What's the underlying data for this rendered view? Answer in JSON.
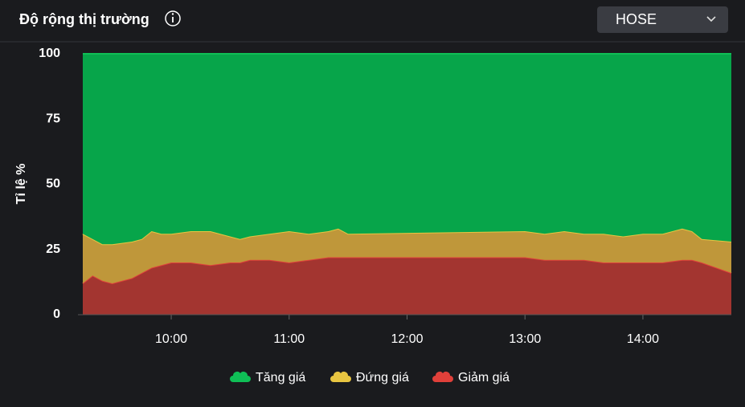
{
  "header": {
    "dropdown": "HOSE"
  },
  "chart_data": {
    "type": "stacked_area",
    "title": "Độ rộng thị trường",
    "ylabel": "Tỉ lệ %",
    "x": [
      "09:15",
      "09:20",
      "09:25",
      "09:30",
      "09:40",
      "09:45",
      "09:50",
      "09:55",
      "10:00",
      "10:10",
      "10:20",
      "10:30",
      "10:35",
      "10:40",
      "10:50",
      "11:00",
      "11:10",
      "11:20",
      "11:25",
      "11:30",
      "13:00",
      "13:10",
      "13:20",
      "13:30",
      "13:40",
      "13:50",
      "14:00",
      "14:10",
      "14:20",
      "14:25",
      "14:30",
      "14:45"
    ],
    "series": [
      {
        "name": "Tăng giá",
        "color": "#07a54a",
        "line": "#0fbf56",
        "values": [
          69,
          71,
          73,
          73,
          72,
          71,
          68,
          69,
          69,
          68,
          68,
          70,
          71,
          70,
          69,
          68,
          69,
          68,
          67,
          69,
          68,
          69,
          68,
          69,
          69,
          70,
          69,
          69,
          67,
          68,
          71,
          72
        ]
      },
      {
        "name": "Đứng giá",
        "color": "#bf973a",
        "line": "#e8c541",
        "values": [
          19,
          14,
          14,
          15,
          14,
          13,
          14,
          12,
          11,
          12,
          13,
          10,
          9,
          9,
          10,
          12,
          10,
          10,
          11,
          9,
          10,
          10,
          11,
          10,
          11,
          10,
          11,
          11,
          12,
          11,
          9,
          12
        ]
      },
      {
        "name": "Giảm giá",
        "color": "#a33530",
        "line": "#e0403a",
        "values": [
          12,
          15,
          13,
          12,
          14,
          16,
          18,
          19,
          20,
          20,
          19,
          20,
          20,
          21,
          21,
          20,
          21,
          22,
          22,
          22,
          22,
          21,
          21,
          21,
          20,
          20,
          20,
          20,
          21,
          21,
          20,
          16
        ]
      }
    ],
    "xlim": [
      "09:15",
      "14:45"
    ],
    "xticks": [
      "10:00",
      "11:00",
      "12:00",
      "13:00",
      "14:00"
    ],
    "ylim": [
      0,
      100
    ],
    "yticks": [
      0,
      25,
      50,
      75,
      100
    ],
    "legend": "bottom"
  }
}
